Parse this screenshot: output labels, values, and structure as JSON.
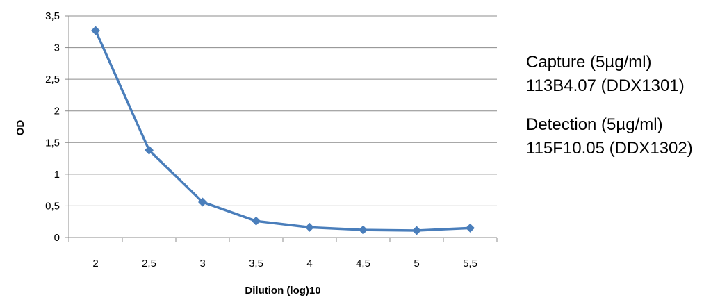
{
  "chart_data": {
    "type": "line",
    "xlabel": "Dilution (log)10",
    "ylabel": "OD",
    "categories": [
      "2",
      "2,5",
      "3",
      "3,5",
      "4",
      "4,5",
      "5",
      "5,5"
    ],
    "y_ticks": [
      "0",
      "0,5",
      "1",
      "1,5",
      "2",
      "2,5",
      "3",
      "3,5"
    ],
    "ylim": [
      0,
      3.5
    ],
    "grid": "horizontal",
    "series": [
      {
        "values": [
          3.27,
          1.38,
          0.56,
          0.26,
          0.16,
          0.12,
          0.11,
          0.15
        ],
        "color": "#4a7ebb"
      }
    ]
  },
  "annotations": {
    "capture_line1": "Capture  (5µg/ml)",
    "capture_line2": "113B4.07 (DDX1301)",
    "detection_line1": "Detection (5µg/ml)",
    "detection_line2": "115F10.05 (DDX1302)"
  }
}
